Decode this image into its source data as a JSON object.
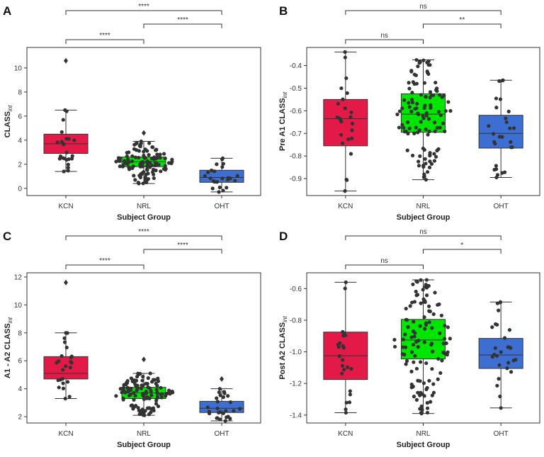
{
  "figure": {
    "categories": [
      "KCN",
      "NRL",
      "OHT"
    ],
    "xlabel": "Subject Group",
    "colors": {
      "KCN": "#e31a47",
      "NRL": "#00e600",
      "OHT": "#3c6fd1"
    }
  },
  "chart_data": [
    {
      "type": "box",
      "panel": "A",
      "ylabel": "CLASS",
      "ylabel_sub": "int",
      "ylim": [
        -0.6,
        11.7
      ],
      "yticks": [
        0,
        2,
        4,
        6,
        8,
        10
      ],
      "ytick_labels": [
        "0",
        "2",
        "4",
        "6",
        "8",
        "10"
      ],
      "boxes": [
        {
          "category": "KCN",
          "whisker_low": 1.4,
          "q1": 2.9,
          "median": 3.7,
          "q3": 4.5,
          "whisker_high": 6.5,
          "outliers": [
            10.6
          ],
          "n": 24,
          "spread": 0.13
        },
        {
          "category": "NRL",
          "whisker_low": 0.4,
          "q1": 1.8,
          "median": 2.2,
          "q3": 2.6,
          "whisker_high": 3.9,
          "outliers": [
            4.6
          ],
          "n": 115,
          "spread": 0.32
        },
        {
          "category": "OHT",
          "whisker_low": -0.3,
          "q1": 0.5,
          "median": 0.9,
          "q3": 1.5,
          "whisker_high": 2.5,
          "outliers": [],
          "n": 27,
          "spread": 0.2
        }
      ],
      "significance": [
        {
          "from": "KCN",
          "to": "NRL",
          "label": "****"
        },
        {
          "from": "NRL",
          "to": "OHT",
          "label": "****"
        },
        {
          "from": "KCN",
          "to": "OHT",
          "label": "****"
        }
      ]
    },
    {
      "type": "box",
      "panel": "B",
      "ylabel": "Pre A1 CLASS",
      "ylabel_sub": "int",
      "ylim": [
        -0.975,
        -0.32
      ],
      "yticks": [
        -0.9,
        -0.8,
        -0.7,
        -0.6,
        -0.5,
        -0.4
      ],
      "ytick_labels": [
        "-0.9",
        "-0.8",
        "-0.7",
        "-0.6",
        "-0.5",
        "-0.4"
      ],
      "boxes": [
        {
          "category": "KCN",
          "whisker_low": -0.955,
          "q1": -0.755,
          "median": -0.635,
          "q3": -0.55,
          "whisker_high": -0.34,
          "outliers": [],
          "n": 24,
          "spread": 0.1
        },
        {
          "category": "NRL",
          "whisker_low": -0.905,
          "q1": -0.695,
          "median": -0.615,
          "q3": -0.525,
          "whisker_high": -0.375,
          "outliers": [],
          "n": 115,
          "spread": 0.32
        },
        {
          "category": "OHT",
          "whisker_low": -0.895,
          "q1": -0.765,
          "median": -0.7,
          "q3": -0.62,
          "whisker_high": -0.465,
          "outliers": [],
          "n": 27,
          "spread": 0.17
        }
      ],
      "significance": [
        {
          "from": "KCN",
          "to": "NRL",
          "label": "ns"
        },
        {
          "from": "NRL",
          "to": "OHT",
          "label": "**"
        },
        {
          "from": "KCN",
          "to": "OHT",
          "label": "ns"
        }
      ]
    },
    {
      "type": "box",
      "panel": "C",
      "ylabel": "A1 - A2 CLASS",
      "ylabel_sub": "int",
      "ylim": [
        1.55,
        12.3
      ],
      "yticks": [
        2,
        4,
        6,
        8,
        10,
        12
      ],
      "ytick_labels": [
        "2",
        "4",
        "6",
        "8",
        "10",
        "12"
      ],
      "boxes": [
        {
          "category": "KCN",
          "whisker_low": 3.3,
          "q1": 4.7,
          "median": 5.1,
          "q3": 6.3,
          "whisker_high": 8.0,
          "outliers": [
            11.6
          ],
          "n": 24,
          "spread": 0.13
        },
        {
          "category": "NRL",
          "whisker_low": 2.1,
          "q1": 3.3,
          "median": 3.7,
          "q3": 4.1,
          "whisker_high": 5.1,
          "outliers": [
            6.1
          ],
          "n": 115,
          "spread": 0.33
        },
        {
          "category": "OHT",
          "whisker_low": 1.7,
          "q1": 2.3,
          "median": 2.6,
          "q3": 3.1,
          "whisker_high": 4.0,
          "outliers": [
            4.7
          ],
          "n": 27,
          "spread": 0.2
        }
      ],
      "significance": [
        {
          "from": "KCN",
          "to": "NRL",
          "label": "****"
        },
        {
          "from": "NRL",
          "to": "OHT",
          "label": "****"
        },
        {
          "from": "KCN",
          "to": "OHT",
          "label": "****"
        }
      ]
    },
    {
      "type": "box",
      "panel": "D",
      "ylabel": "Post A2 CLASS",
      "ylabel_sub": "int",
      "ylim": [
        -1.45,
        -0.5
      ],
      "yticks": [
        -1.4,
        -1.2,
        -1.0,
        -0.8,
        -0.6
      ],
      "ytick_labels": [
        "-1.4",
        "-1.2",
        "-1.0",
        "-0.8",
        "-0.6"
      ],
      "boxes": [
        {
          "category": "KCN",
          "whisker_low": -1.385,
          "q1": -1.175,
          "median": -1.025,
          "q3": -0.875,
          "whisker_high": -0.56,
          "outliers": [],
          "n": 24,
          "spread": 0.1
        },
        {
          "category": "NRL",
          "whisker_low": -1.39,
          "q1": -1.045,
          "median": -0.925,
          "q3": -0.795,
          "whisker_high": -0.545,
          "outliers": [],
          "n": 115,
          "spread": 0.32
        },
        {
          "category": "OHT",
          "whisker_low": -1.355,
          "q1": -1.105,
          "median": -1.02,
          "q3": -0.915,
          "whisker_high": -0.685,
          "outliers": [],
          "n": 27,
          "spread": 0.17
        }
      ],
      "significance": [
        {
          "from": "KCN",
          "to": "NRL",
          "label": "ns"
        },
        {
          "from": "NRL",
          "to": "OHT",
          "label": "*"
        },
        {
          "from": "KCN",
          "to": "OHT",
          "label": "ns"
        }
      ]
    }
  ]
}
